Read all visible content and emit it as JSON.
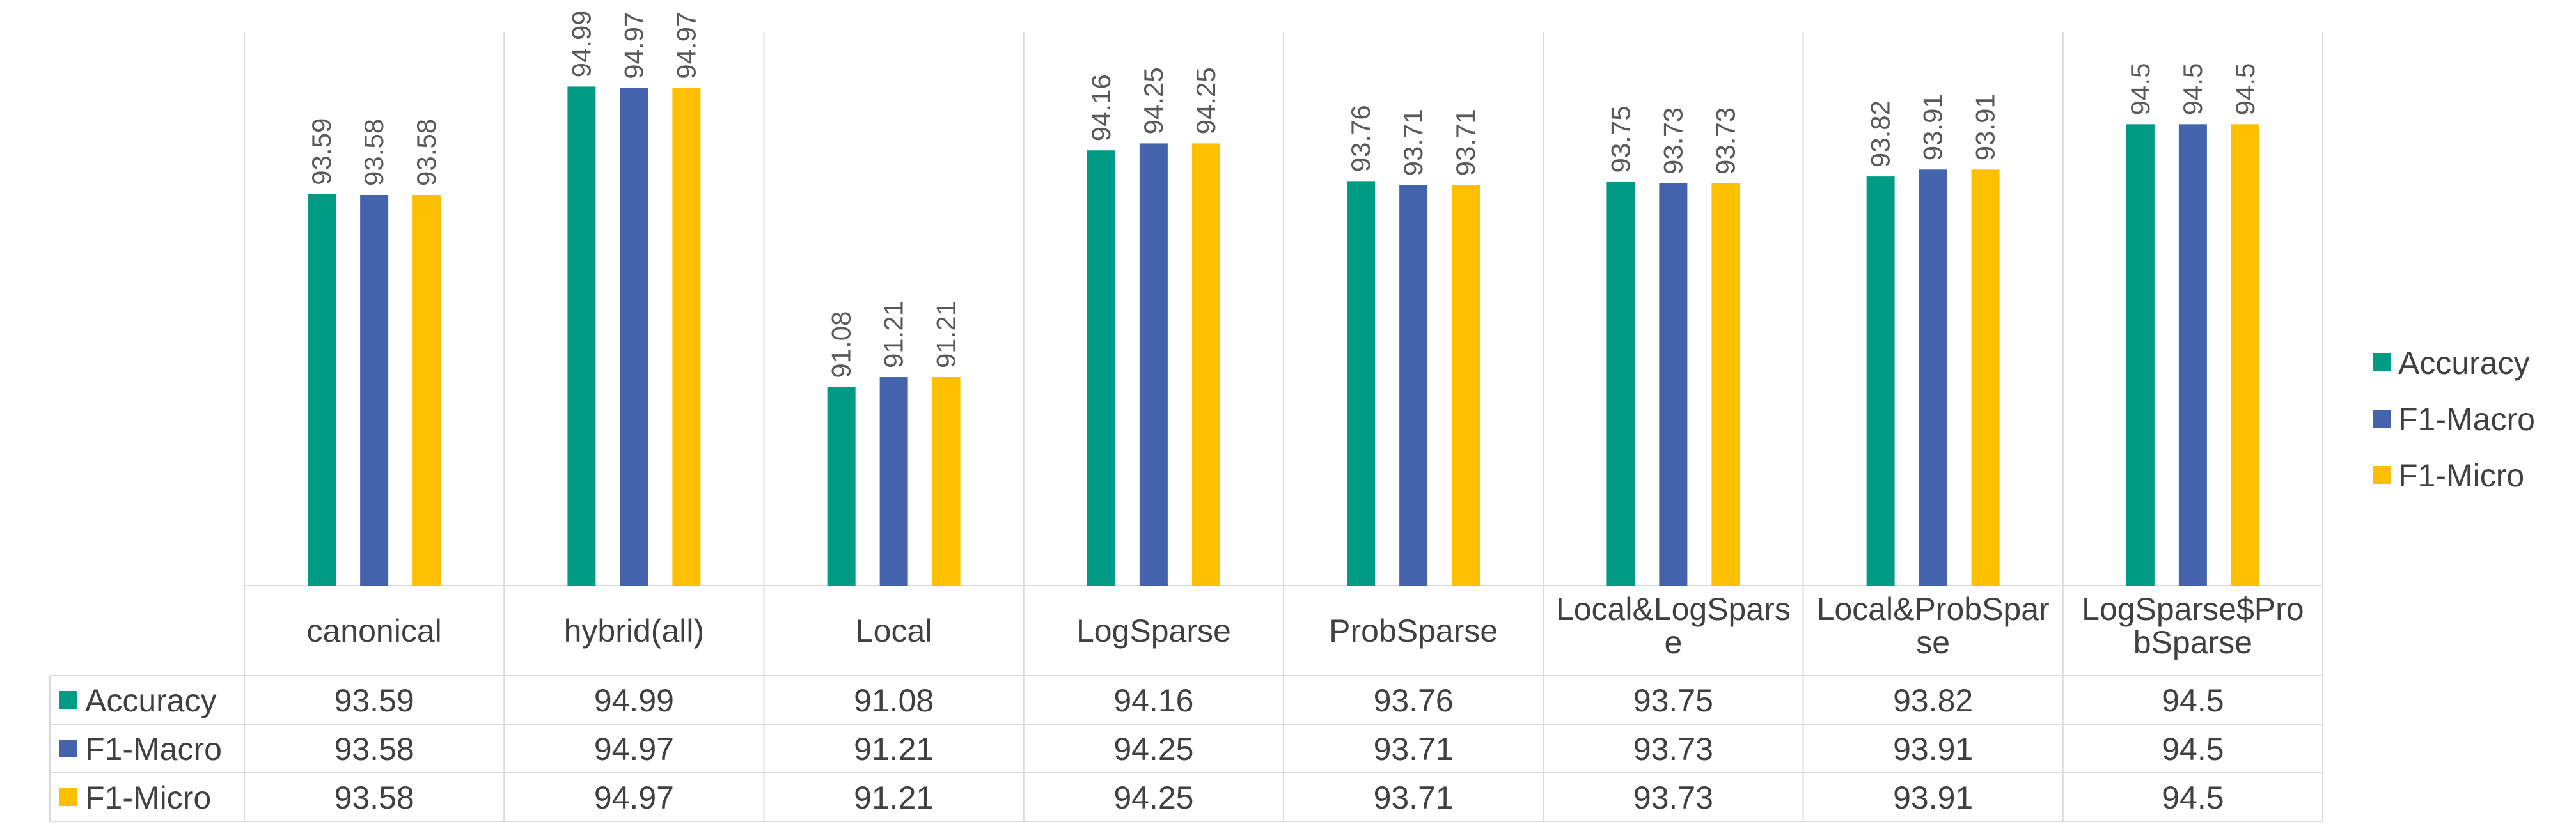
{
  "chart_data": {
    "type": "bar",
    "title": "",
    "xlabel": "",
    "ylabel": "",
    "ylim": [
      88.5,
      95.7
    ],
    "grid": false,
    "legend_position": "right",
    "data_table": true,
    "categories": [
      "canonical",
      "hybrid(all)",
      "Local",
      "LogSparse",
      "ProbSparse",
      "Local&LogSparse",
      "Local&ProbSparse",
      "LogSparse$ProbSparse"
    ],
    "category_display_lines": [
      [
        "canonical"
      ],
      [
        "hybrid(all)"
      ],
      [
        "Local"
      ],
      [
        "LogSparse"
      ],
      [
        "ProbSparse"
      ],
      [
        "Local&LogSpars",
        "e"
      ],
      [
        "Local&ProbSpar",
        "se"
      ],
      [
        "LogSparse$Pro",
        "bSparse"
      ]
    ],
    "series": [
      {
        "name": "Accuracy",
        "color": "#009B84",
        "values": [
          93.59,
          94.99,
          91.08,
          94.16,
          93.76,
          93.75,
          93.82,
          94.5
        ]
      },
      {
        "name": "F1-Macro",
        "color": "#4363AC",
        "values": [
          93.58,
          94.97,
          91.21,
          94.25,
          93.71,
          93.73,
          93.91,
          94.5
        ]
      },
      {
        "name": "F1-Micro",
        "color": "#FDBF00",
        "values": [
          93.58,
          94.97,
          91.21,
          94.25,
          93.71,
          93.73,
          93.91,
          94.5
        ]
      }
    ]
  }
}
